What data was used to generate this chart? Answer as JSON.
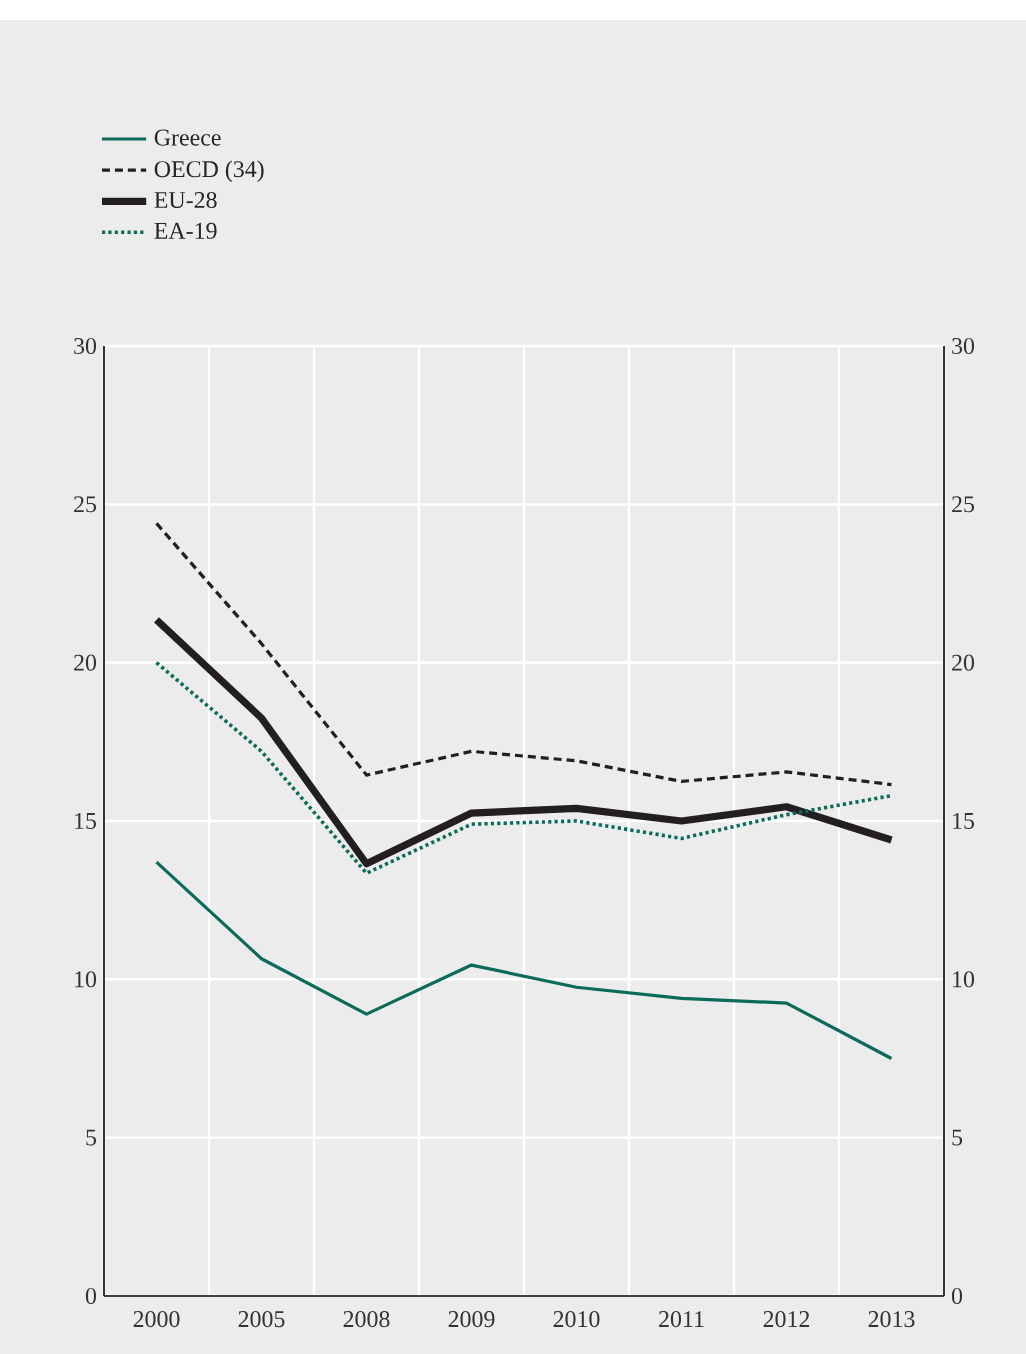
{
  "chart_data": {
    "type": "line",
    "categories": [
      "2000",
      "2005",
      "2008",
      "2009",
      "2010",
      "2011",
      "2012",
      "2013"
    ],
    "series": [
      {
        "name": "Greece",
        "color": "#0b6b5a",
        "line_style": "solid",
        "values": [
          13.7,
          10.65,
          8.9,
          10.45,
          9.75,
          9.4,
          9.25,
          7.5
        ]
      },
      {
        "name": "OECD (34)",
        "color": "#231f20",
        "line_style": "dashed",
        "values": [
          24.4,
          20.6,
          16.45,
          17.2,
          16.9,
          16.25,
          16.55,
          16.15
        ]
      },
      {
        "name": "EU-28",
        "color": "#231f20",
        "line_style": "solid",
        "values": [
          21.35,
          18.25,
          13.65,
          15.25,
          15.4,
          15.0,
          15.45,
          14.4
        ]
      },
      {
        "name": "EA-19",
        "color": "#0b6b5a",
        "line_style": "dotted",
        "values": [
          20.0,
          17.2,
          13.35,
          14.9,
          15.0,
          14.45,
          15.2,
          15.8
        ]
      }
    ],
    "ylim": [
      0,
      30
    ],
    "yticks": [
      0,
      5,
      10,
      15,
      20,
      25,
      30
    ],
    "y2lim": [
      0,
      30
    ],
    "y2ticks": [
      0,
      5,
      10,
      15,
      20,
      25,
      30
    ],
    "grid": true,
    "legend": "top left",
    "marker": "none"
  }
}
